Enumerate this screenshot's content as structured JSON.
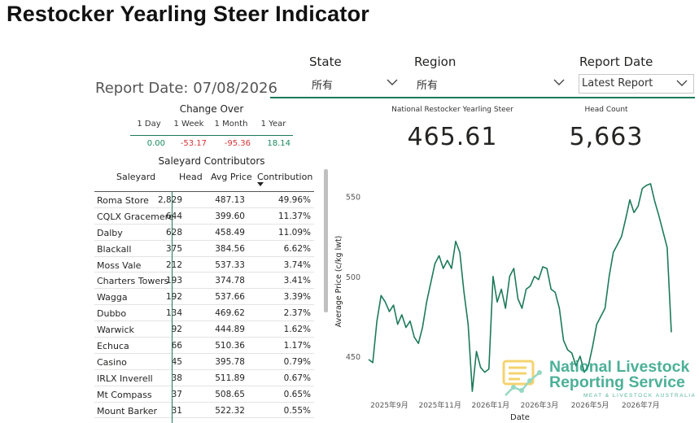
{
  "title": "Restocker Yearling Steer Indicator",
  "filters": {
    "state": {
      "label": "State",
      "value": "所有"
    },
    "region": {
      "label": "Region",
      "value": "所有"
    },
    "report_date": {
      "label": "Report Date",
      "value": "Latest Report"
    }
  },
  "report_date_text": "Report Date: 07/08/2026",
  "change_over": {
    "title": "Change Over",
    "headers": [
      "1 Day",
      "1 Week",
      "1 Month",
      "1 Year"
    ],
    "values": [
      "0.00",
      "-53.17",
      "-95.36",
      "18.14"
    ]
  },
  "contributors": {
    "title": "Saleyard Contributors",
    "headers": {
      "name": "Saleyard",
      "head": "Head",
      "price": "Avg Price",
      "contribution": "Contribution"
    },
    "rows": [
      {
        "name": "Roma Store",
        "head": "2,829",
        "price": "487.13",
        "contribution": "49.96%"
      },
      {
        "name": "CQLX Gracemere",
        "head": "644",
        "price": "399.60",
        "contribution": "11.37%"
      },
      {
        "name": "Dalby",
        "head": "628",
        "price": "458.49",
        "contribution": "11.09%"
      },
      {
        "name": "Blackall",
        "head": "375",
        "price": "384.56",
        "contribution": "6.62%"
      },
      {
        "name": "Moss Vale",
        "head": "212",
        "price": "537.33",
        "contribution": "3.74%"
      },
      {
        "name": "Charters Towers",
        "head": "193",
        "price": "374.78",
        "contribution": "3.41%"
      },
      {
        "name": "Wagga",
        "head": "192",
        "price": "537.66",
        "contribution": "3.39%"
      },
      {
        "name": "Dubbo",
        "head": "134",
        "price": "469.62",
        "contribution": "2.37%"
      },
      {
        "name": "Warwick",
        "head": "92",
        "price": "444.89",
        "contribution": "1.62%"
      },
      {
        "name": "Echuca",
        "head": "66",
        "price": "510.36",
        "contribution": "1.17%"
      },
      {
        "name": "Casino",
        "head": "45",
        "price": "395.78",
        "contribution": "0.79%"
      },
      {
        "name": "IRLX Inverell",
        "head": "38",
        "price": "511.89",
        "contribution": "0.67%"
      },
      {
        "name": "Mt Compass",
        "head": "37",
        "price": "508.65",
        "contribution": "0.65%"
      },
      {
        "name": "Mount Barker",
        "head": "31",
        "price": "522.32",
        "contribution": "0.55%"
      }
    ]
  },
  "kpis": {
    "indicator": {
      "label": "National Restocker Yearling Steer",
      "value": "465.61"
    },
    "head_count": {
      "label": "Head Count",
      "value": "5,663"
    }
  },
  "logo": {
    "line1": "National Livestock",
    "line2": "Reporting Service",
    "line3": "MEAT & LIVESTOCK AUSTRALIA",
    "color": "#1b9a7c"
  },
  "chart_data": {
    "type": "line",
    "xlabel": "Date",
    "ylabel": "Average Price (c/kg lwt)",
    "x_ticks": [
      "2025年9月",
      "2025年11月",
      "2026年1月",
      "2026年3月",
      "2026年5月",
      "2026年7月"
    ],
    "y_ticks": [
      450,
      500,
      550
    ],
    "ylim": [
      425,
      560
    ],
    "line_color": "#1d7a5a",
    "x": [
      "2025-08-07",
      "2025-08-12",
      "2025-08-17",
      "2025-08-22",
      "2025-08-27",
      "2025-09-01",
      "2025-09-06",
      "2025-09-11",
      "2025-09-16",
      "2025-09-21",
      "2025-09-26",
      "2025-10-01",
      "2025-10-06",
      "2025-10-11",
      "2025-10-16",
      "2025-10-21",
      "2025-10-26",
      "2025-10-31",
      "2025-11-05",
      "2025-11-10",
      "2025-11-15",
      "2025-11-20",
      "2025-11-25",
      "2025-11-30",
      "2025-12-05",
      "2025-12-10",
      "2025-12-15",
      "2025-12-20",
      "2025-12-25",
      "2025-12-30",
      "2026-01-04",
      "2026-01-09",
      "2026-01-14",
      "2026-01-19",
      "2026-01-24",
      "2026-01-29",
      "2026-02-03",
      "2026-02-08",
      "2026-02-13",
      "2026-02-18",
      "2026-02-23",
      "2026-02-28",
      "2026-03-05",
      "2026-03-10",
      "2026-03-15",
      "2026-03-20",
      "2026-03-25",
      "2026-03-30",
      "2026-04-04",
      "2026-04-09",
      "2026-04-14",
      "2026-04-19",
      "2026-04-24",
      "2026-04-29",
      "2026-05-04",
      "2026-05-09",
      "2026-05-14",
      "2026-05-19",
      "2026-05-24",
      "2026-05-29",
      "2026-06-03",
      "2026-06-08",
      "2026-06-13",
      "2026-06-18",
      "2026-06-23",
      "2026-06-28",
      "2026-07-03",
      "2026-07-08",
      "2026-07-13",
      "2026-07-18",
      "2026-07-23",
      "2026-07-28",
      "2026-08-02",
      "2026-08-07"
    ],
    "values": [
      448,
      446,
      472,
      488,
      484,
      478,
      482,
      470,
      476,
      468,
      472,
      462,
      458,
      468,
      484,
      496,
      508,
      513,
      505,
      510,
      505,
      522,
      515,
      490,
      470,
      428,
      453,
      443,
      440,
      442,
      500,
      484,
      492,
      480,
      500,
      505,
      486,
      480,
      492,
      494,
      500,
      498,
      506,
      505,
      492,
      490,
      480,
      460,
      454,
      452,
      444,
      450,
      440,
      444,
      456,
      470,
      475,
      480,
      500,
      515,
      520,
      525,
      536,
      548,
      540,
      544,
      555,
      557,
      558,
      547,
      538,
      528,
      518,
      465
    ]
  }
}
